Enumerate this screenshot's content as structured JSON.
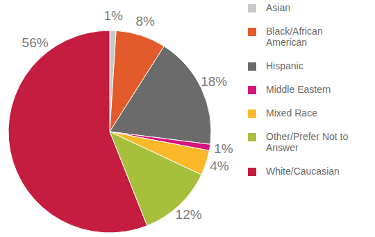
{
  "chart_data": {
    "type": "pie",
    "categories": [
      "Asian",
      "Black/African American",
      "Hispanic",
      "Middle Eastern",
      "Mixed Race",
      "Other/Prefer Not to Answer",
      "White/Caucasian"
    ],
    "values": [
      1,
      8,
      18,
      1,
      4,
      12,
      56
    ],
    "value_labels": [
      "1%",
      "8%",
      "18%",
      "1%",
      "4%",
      "12%",
      "56%"
    ],
    "colors": [
      "#c8c8c8",
      "#e35b2a",
      "#6b6b6b",
      "#d4157c",
      "#fbb828",
      "#a7c03b",
      "#c41d40"
    ],
    "data_labels": true,
    "legend": "right"
  }
}
